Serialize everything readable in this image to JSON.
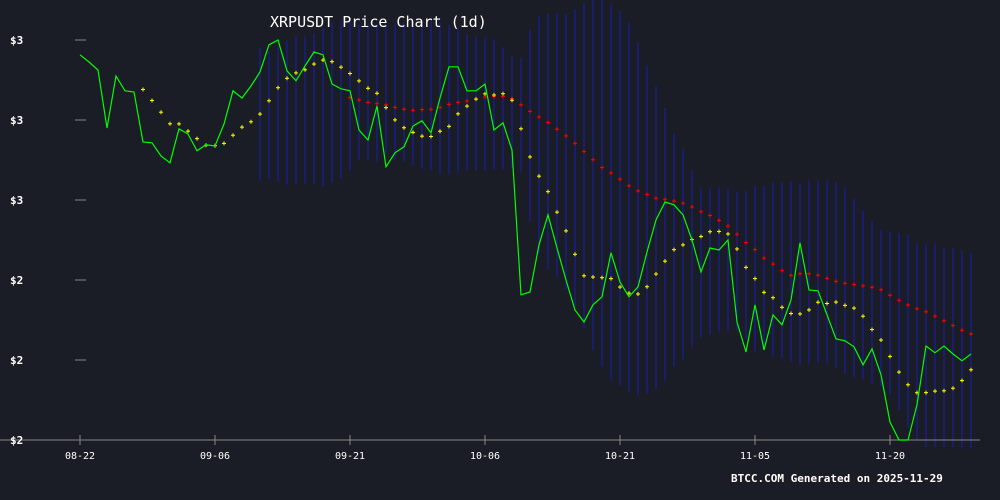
{
  "chart_data": {
    "type": "line",
    "title": "XRPUSDT Price Chart (1d)",
    "footer": "BTCC.COM Generated on 2025-11-29",
    "xlabel": "",
    "ylabel": "",
    "x_start": "2025-08-22",
    "x_step_days": 1,
    "x_ticks": [
      {
        "index": 0,
        "label": "08-22"
      },
      {
        "index": 15,
        "label": "09-06"
      },
      {
        "index": 30,
        "label": "09-21"
      },
      {
        "index": 45,
        "label": "10-06"
      },
      {
        "index": 60,
        "label": "10-21"
      },
      {
        "index": 75,
        "label": "11-05"
      },
      {
        "index": 90,
        "label": "11-20"
      }
    ],
    "y_ticks": [
      {
        "value": 3.0,
        "label": "$3"
      },
      {
        "value": 2.8,
        "label": "$3"
      },
      {
        "value": 2.6,
        "label": "$3"
      },
      {
        "value": 2.4,
        "label": "$2"
      },
      {
        "value": 2.2,
        "label": "$2"
      },
      {
        "value": 2.0,
        "label": "$2"
      }
    ],
    "ylim": [
      2.0,
      3.0
    ],
    "grid": false,
    "series": [
      {
        "name": "Close",
        "color": "#00ff00",
        "values": [
          2.963,
          2.945,
          2.925,
          2.78,
          2.91,
          2.873,
          2.87,
          2.745,
          2.743,
          2.71,
          2.693,
          2.778,
          2.765,
          2.723,
          2.738,
          2.735,
          2.79,
          2.873,
          2.855,
          2.885,
          2.92,
          2.988,
          3.0,
          2.923,
          2.898,
          2.935,
          2.97,
          2.963,
          2.89,
          2.878,
          2.873,
          2.775,
          2.75,
          2.835,
          2.683,
          2.718,
          2.733,
          2.785,
          2.798,
          2.768,
          2.855,
          2.933,
          2.933,
          2.873,
          2.873,
          2.89,
          2.775,
          2.793,
          2.725,
          2.363,
          2.37,
          2.488,
          2.563,
          2.48,
          2.4,
          2.325,
          2.295,
          2.338,
          2.358,
          2.468,
          2.395,
          2.358,
          2.383,
          2.47,
          2.55,
          2.595,
          2.588,
          2.563,
          2.5,
          2.42,
          2.48,
          2.475,
          2.5,
          2.295,
          2.22,
          2.338,
          2.225,
          2.313,
          2.288,
          2.35,
          2.493,
          2.375,
          2.373,
          2.313,
          2.253,
          2.248,
          2.233,
          2.188,
          2.228,
          2.163,
          2.045,
          2.0,
          2.0,
          2.088,
          2.235,
          2.218,
          2.235,
          2.215,
          2.198,
          2.215
        ]
      },
      {
        "name": "SMA short",
        "color": "#ffff00",
        "period": 8,
        "marker": "plus"
      },
      {
        "name": "SMA long",
        "color": "#ff0000",
        "period": 31,
        "marker": "plus"
      },
      {
        "name": "Bollinger range",
        "color": "#1c1c9c",
        "period": 20,
        "stddev": 2,
        "style": "vertical-lines"
      }
    ]
  }
}
